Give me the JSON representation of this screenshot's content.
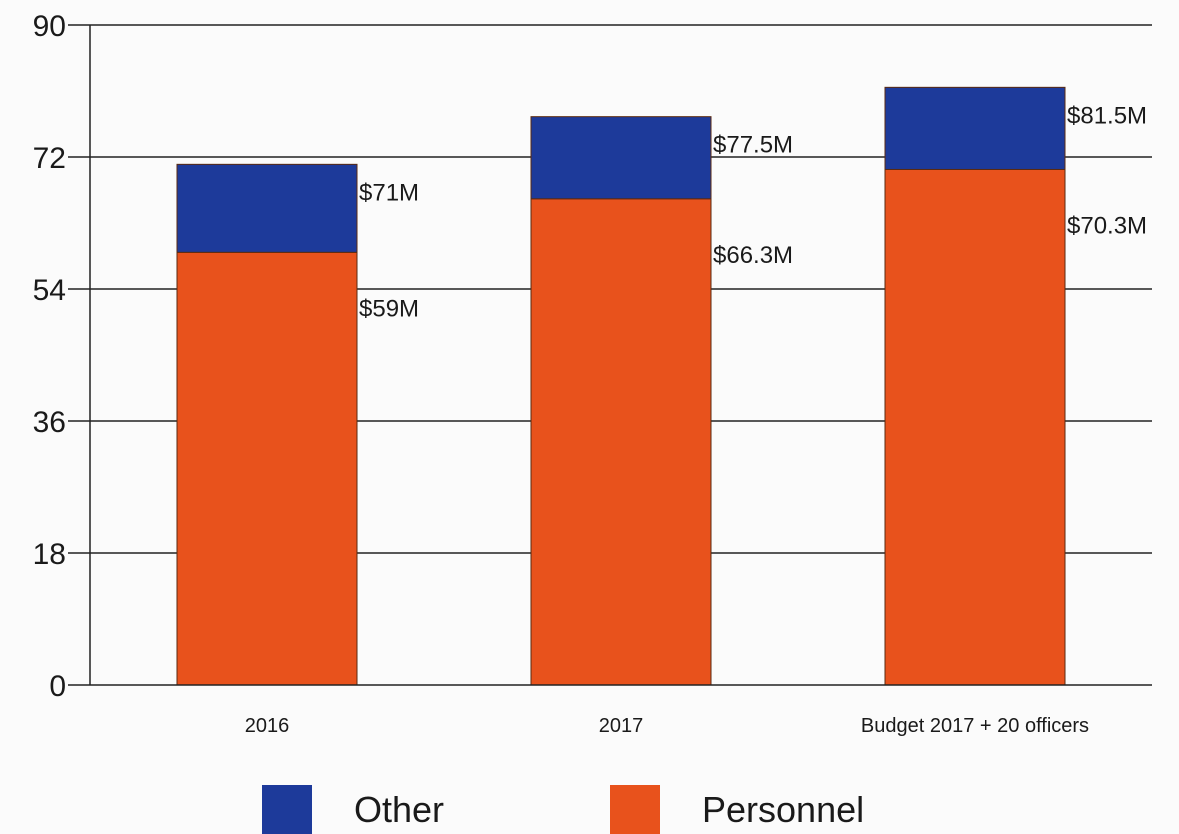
{
  "chart_data": {
    "type": "bar",
    "stacked": true,
    "categories": [
      "2016",
      "2017",
      "Budget 2017 + 20 officers"
    ],
    "series": [
      {
        "name": "Personnel",
        "color": "#e8521c",
        "values": [
          59,
          66.3,
          70.3
        ]
      },
      {
        "name": "Other",
        "color": "#1d3a9a",
        "values": [
          12,
          11.2,
          11.2
        ]
      }
    ],
    "totals": [
      71,
      77.5,
      81.5
    ],
    "data_labels": {
      "personnel": [
        "$59M",
        "$66.3M",
        "$70.3M"
      ],
      "total": [
        "$71M",
        "$77.5M",
        "$81.5M"
      ]
    },
    "title": "",
    "xlabel": "",
    "ylabel": "",
    "ylim": [
      0,
      90
    ],
    "yticks": [
      "0",
      "18",
      "36",
      "54",
      "72",
      "90"
    ],
    "grid": true,
    "legend": {
      "position": "bottom",
      "entries": [
        {
          "label": "Other",
          "color": "#1d3a9a"
        },
        {
          "label": "Personnel",
          "color": "#e8521c"
        }
      ]
    }
  }
}
